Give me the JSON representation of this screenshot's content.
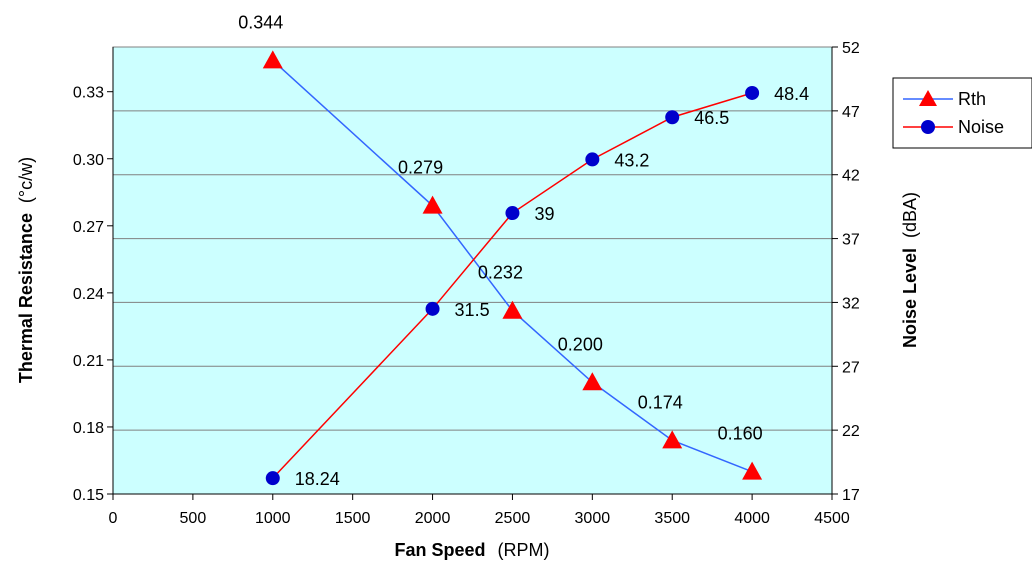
{
  "chart_data": {
    "type": "line",
    "x": [
      1000,
      2000,
      2500,
      3000,
      3500,
      4000
    ],
    "x_ticks": [
      "0",
      "500",
      "1000",
      "1500",
      "2000",
      "2500",
      "3000",
      "3500",
      "4000",
      "4500"
    ],
    "xlim": [
      0,
      4500
    ],
    "xlabel_bold": "Fan Speed",
    "xlabel_unit": "(RPM)",
    "ylabel_left_bold": "Thermal Resistance",
    "ylabel_left_unit": "(°c/w)",
    "ylabel_right_bold": "Noise Level",
    "ylabel_right_unit": "(dBA)",
    "ylim_left": [
      0.15,
      0.35
    ],
    "ylim_right": [
      17,
      52
    ],
    "y_left_ticks": [
      "0.15",
      "0.18",
      "0.21",
      "0.24",
      "0.27",
      "0.30",
      "0.33"
    ],
    "y_right_ticks": [
      "17",
      "22",
      "27",
      "32",
      "37",
      "42",
      "47",
      "52"
    ],
    "grid": "horizontal",
    "plot_background": "#ccffff",
    "legend_position": "right",
    "series": [
      {
        "name": "Rth",
        "axis": "left",
        "values": [
          0.344,
          0.279,
          0.232,
          0.2,
          0.174,
          0.16
        ],
        "labels": [
          "0.344",
          "0.279",
          "0.232",
          "0.200",
          "0.174",
          "0.160"
        ],
        "line_color": "#3366ff",
        "marker_color": "#ff0000",
        "marker": "triangle"
      },
      {
        "name": "Noise",
        "axis": "right",
        "values": [
          18.24,
          31.5,
          39,
          43.2,
          46.5,
          48.4
        ],
        "labels": [
          "18.24",
          "31.5",
          "39",
          "43.2",
          "46.5",
          "48.4"
        ],
        "line_color": "#ff0000",
        "marker_color": "#0000cc",
        "marker": "circle"
      }
    ]
  }
}
